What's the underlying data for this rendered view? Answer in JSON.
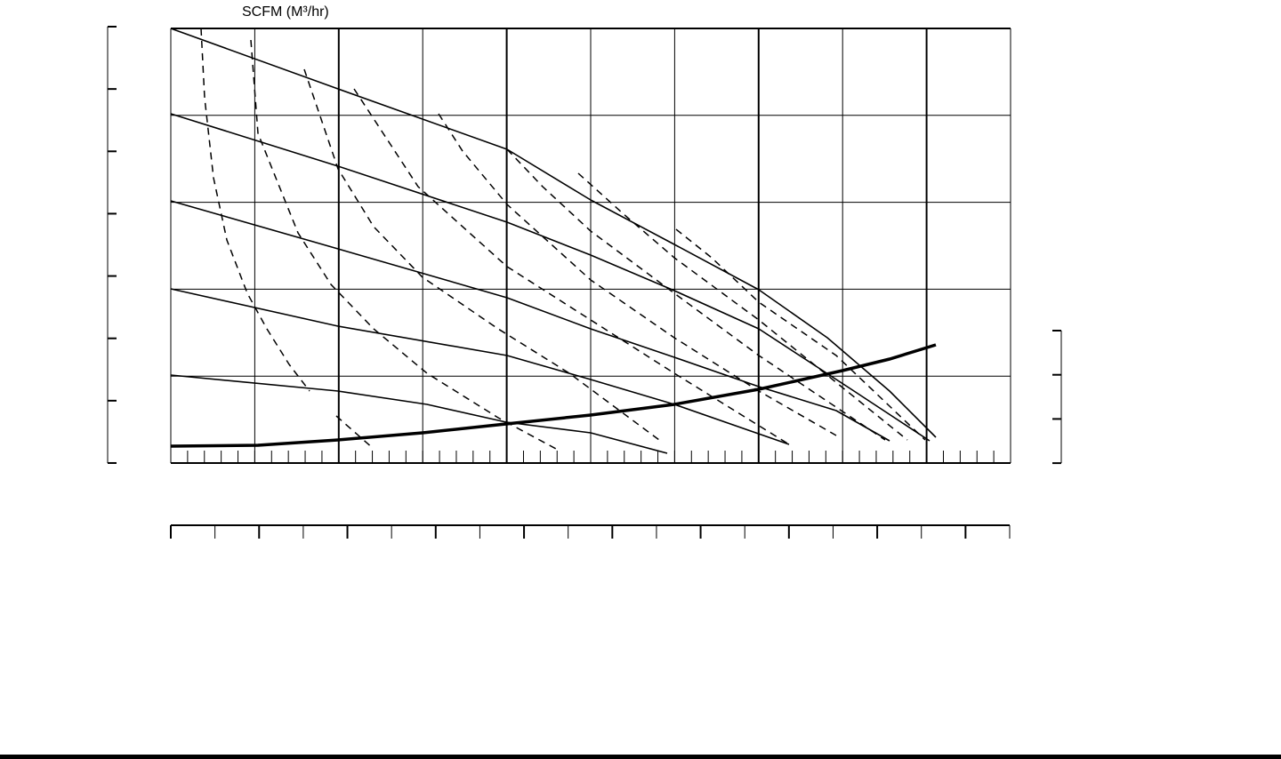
{
  "header": {
    "title": "SCFM (M³/hr)"
  }
}
